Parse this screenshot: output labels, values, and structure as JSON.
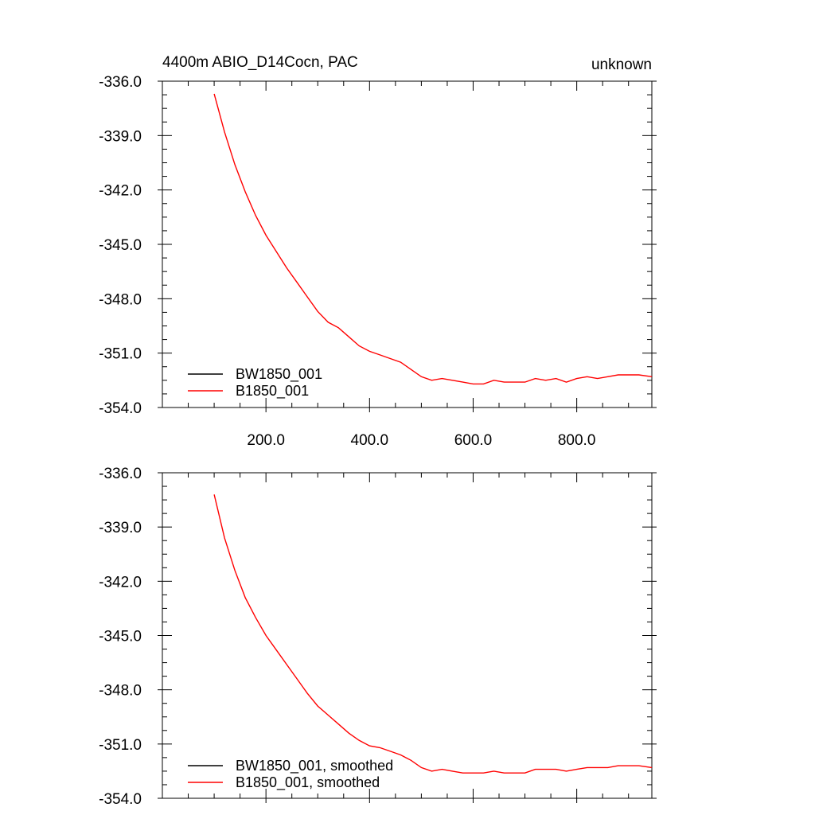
{
  "figure": {
    "title_left": "4400m ABIO_D14Cocn, PAC",
    "title_right": "unknown"
  },
  "chart_data": [
    {
      "type": "line",
      "xlim": [
        0,
        945
      ],
      "ylim": [
        -354.0,
        -336.0
      ],
      "x_ticks": [
        200,
        400,
        600,
        800
      ],
      "x_tick_labels": [
        "200.0",
        "400.0",
        "600.0",
        "800.0"
      ],
      "x_tick_labels_shown": true,
      "y_ticks": [
        -336,
        -339,
        -342,
        -345,
        -348,
        -351,
        -354
      ],
      "y_tick_labels": [
        "-336.0",
        "-339.0",
        "-342.0",
        "-345.0",
        "-348.0",
        "-351.0",
        "-354.0"
      ],
      "grid": false,
      "legend_position": "bottom-left",
      "series": [
        {
          "name": "BW1850_001",
          "color": "#000000",
          "x": [],
          "y": []
        },
        {
          "name": "B1850_001",
          "color": "#ff0000",
          "x": [
            100,
            120,
            140,
            160,
            180,
            200,
            220,
            240,
            260,
            280,
            300,
            320,
            340,
            360,
            380,
            400,
            420,
            440,
            460,
            480,
            500,
            520,
            540,
            560,
            580,
            600,
            620,
            640,
            660,
            680,
            700,
            720,
            740,
            760,
            780,
            800,
            820,
            840,
            860,
            880,
            900,
            920,
            945
          ],
          "y": [
            -336.7,
            -338.8,
            -340.6,
            -342.1,
            -343.4,
            -344.5,
            -345.4,
            -346.3,
            -347.1,
            -347.9,
            -348.7,
            -349.3,
            -349.6,
            -350.1,
            -350.6,
            -350.9,
            -351.1,
            -351.3,
            -351.5,
            -351.9,
            -352.3,
            -352.5,
            -352.4,
            -352.5,
            -352.6,
            -352.7,
            -352.7,
            -352.5,
            -352.6,
            -352.6,
            -352.6,
            -352.4,
            -352.5,
            -352.4,
            -352.6,
            -352.4,
            -352.3,
            -352.4,
            -352.3,
            -352.2,
            -352.2,
            -352.2,
            -352.3
          ]
        }
      ]
    },
    {
      "type": "line",
      "xlim": [
        0,
        945
      ],
      "ylim": [
        -354.0,
        -336.0
      ],
      "x_ticks": [
        200,
        400,
        600,
        800
      ],
      "x_tick_labels_shown": false,
      "y_ticks": [
        -336,
        -339,
        -342,
        -345,
        -348,
        -351,
        -354
      ],
      "y_tick_labels": [
        "-336.0",
        "-339.0",
        "-342.0",
        "-345.0",
        "-348.0",
        "-351.0",
        "-354.0"
      ],
      "grid": false,
      "legend_position": "bottom-left",
      "series": [
        {
          "name": "BW1850_001, smoothed",
          "color": "#000000",
          "x": [],
          "y": []
        },
        {
          "name": "B1850_001, smoothed",
          "color": "#ff0000",
          "x": [
            100,
            120,
            140,
            160,
            180,
            200,
            220,
            240,
            260,
            280,
            300,
            320,
            340,
            360,
            380,
            400,
            420,
            440,
            460,
            480,
            500,
            520,
            540,
            560,
            580,
            600,
            620,
            640,
            660,
            680,
            700,
            720,
            740,
            760,
            780,
            800,
            820,
            840,
            860,
            880,
            900,
            920,
            945
          ],
          "y": [
            -337.2,
            -339.6,
            -341.4,
            -342.9,
            -344.0,
            -345.0,
            -345.8,
            -346.6,
            -347.4,
            -348.2,
            -348.9,
            -349.4,
            -349.9,
            -350.4,
            -350.8,
            -351.1,
            -351.2,
            -351.4,
            -351.6,
            -351.9,
            -352.3,
            -352.5,
            -352.4,
            -352.5,
            -352.6,
            -352.6,
            -352.6,
            -352.5,
            -352.6,
            -352.6,
            -352.6,
            -352.4,
            -352.4,
            -352.4,
            -352.5,
            -352.4,
            -352.3,
            -352.3,
            -352.3,
            -352.2,
            -352.2,
            -352.2,
            -352.3
          ]
        }
      ]
    }
  ]
}
